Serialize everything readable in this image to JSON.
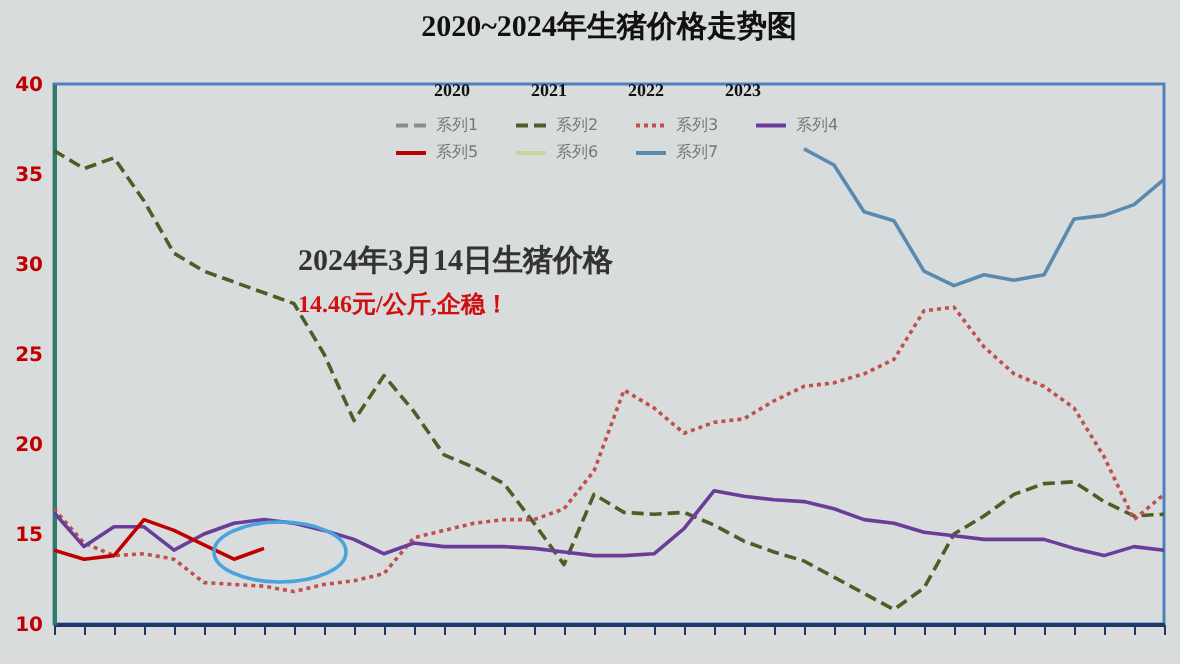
{
  "chart_data": {
    "type": "line",
    "title": "2020~2024年生猪价格走势图",
    "annotations": [
      "2020",
      "2021",
      "2022",
      "2023",
      "2024年3月14日生猪价格",
      "14.46元/公斤,企稳！"
    ],
    "categories": [
      null,
      null,
      null,
      null,
      null,
      null,
      null,
      null,
      null,
      null,
      null,
      null,
      null,
      null,
      null,
      null,
      null,
      null,
      null,
      null,
      null,
      null,
      null,
      null,
      null,
      null,
      null,
      null,
      null,
      null,
      null,
      null,
      null,
      null,
      null,
      null,
      null,
      null
    ],
    "series": [
      {
        "name": "系列1",
        "color": "#8c8c8c",
        "line_style": "dashed",
        "values": [
          null,
          null,
          null,
          null,
          null,
          null,
          null,
          null,
          null,
          null,
          null,
          null,
          null,
          null,
          null,
          null,
          null,
          null,
          null,
          null,
          null,
          null,
          null,
          null,
          null,
          null,
          null,
          null,
          null,
          null,
          null,
          null,
          null,
          null,
          null,
          null,
          null,
          null
        ]
      },
      {
        "name": "系列2",
        "color": "#4d5d26",
        "line_style": "dashed",
        "values": [
          36.3,
          35.3,
          35.9,
          33.5,
          30.6,
          29.6,
          29.0,
          28.4,
          27.8,
          25.0,
          21.3,
          23.8,
          21.8,
          19.4,
          18.7,
          17.8,
          15.6,
          13.3,
          17.2,
          16.2,
          16.1,
          16.2,
          15.5,
          14.6,
          14.0,
          13.5,
          12.6,
          11.7,
          10.8,
          12.0,
          15.0,
          16.0,
          17.2,
          17.8,
          17.9,
          16.8,
          16.0,
          16.1
        ]
      },
      {
        "name": "系列3",
        "color": "#c0504d",
        "line_style": "dotted",
        "values": [
          16.4,
          14.5,
          13.8,
          13.9,
          13.6,
          12.3,
          12.2,
          12.1,
          11.8,
          12.2,
          12.4,
          12.8,
          14.8,
          15.2,
          15.6,
          15.8,
          15.8,
          16.4,
          18.5,
          23.0,
          22.0,
          20.6,
          21.2,
          21.4,
          22.4,
          23.2,
          23.4,
          23.9,
          24.7,
          27.4,
          27.6,
          25.4,
          23.9,
          23.2,
          22.0,
          19.3,
          15.8,
          17.2
        ]
      },
      {
        "name": "系列4",
        "color": "#6a3d9a",
        "line_style": "solid",
        "values": [
          16.2,
          14.3,
          15.4,
          15.4,
          14.1,
          15.0,
          15.6,
          15.8,
          15.6,
          15.2,
          14.7,
          13.9,
          14.5,
          14.3,
          14.3,
          14.3,
          14.2,
          14.0,
          13.8,
          13.8,
          13.9,
          15.3,
          17.4,
          17.1,
          16.9,
          16.8,
          16.4,
          15.8,
          15.6,
          15.1,
          14.9,
          14.7,
          14.7,
          14.7,
          14.2,
          13.8,
          14.3,
          14.1
        ]
      },
      {
        "name": "系列5",
        "color": "#c00000",
        "line_style": "solid",
        "values": [
          14.1,
          13.6,
          13.8,
          15.8,
          15.2,
          14.4,
          13.6,
          14.2,
          null,
          null,
          null,
          null,
          null,
          null,
          null,
          null,
          null,
          null,
          null,
          null,
          null,
          null,
          null,
          null,
          null,
          null,
          null,
          null,
          null,
          null,
          null,
          null,
          null,
          null,
          null,
          null,
          null,
          null
        ]
      },
      {
        "name": "系列6",
        "color": "#c4d79b",
        "line_style": "solid",
        "values": [
          null,
          null,
          null,
          null,
          null,
          null,
          null,
          null,
          null,
          null,
          null,
          null,
          null,
          null,
          null,
          null,
          null,
          null,
          null,
          null,
          null,
          null,
          null,
          null,
          null,
          null,
          null,
          null,
          null,
          null,
          null,
          null,
          null,
          null,
          null,
          null,
          null,
          null
        ]
      },
      {
        "name": "系列7",
        "color": "#5a8ab0",
        "line_style": "solid",
        "values": [
          null,
          null,
          null,
          null,
          null,
          null,
          null,
          null,
          null,
          null,
          null,
          null,
          null,
          null,
          null,
          null,
          null,
          null,
          null,
          null,
          null,
          null,
          null,
          null,
          null,
          36.4,
          35.5,
          32.9,
          32.4,
          29.6,
          28.8,
          29.4,
          29.1,
          29.4,
          32.5,
          32.7,
          33.3,
          34.7
        ]
      }
    ],
    "ylim": [
      10,
      40
    ],
    "yticks": [
      10,
      15,
      20,
      25,
      30,
      35,
      40
    ],
    "legend": "top"
  }
}
